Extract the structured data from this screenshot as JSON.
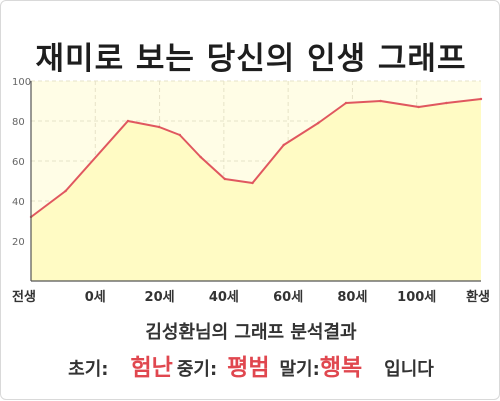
{
  "title": "재미로 보는 당신의 인생 그래프",
  "subtitle": "김성환님의 그래프 분석결과",
  "summary": {
    "early_label": "초기:",
    "early_value": "험난",
    "mid_label": "중기:",
    "mid_value": "평범",
    "late_label": "말기:",
    "late_value": "행복",
    "suffix": "입니다"
  },
  "colors": {
    "line": "#e0575f",
    "fill": "#fffbc4",
    "plot_background": "#fffde6",
    "grid": "#e6e2c8",
    "accent_text": "#e0474f"
  },
  "chart_data": {
    "type": "area",
    "title": "재미로 보는 당신의 인생 그래프",
    "xlabel": "",
    "ylabel": "",
    "x_ticks": [
      "전생",
      "0세",
      "20세",
      "40세",
      "60세",
      "80세",
      "100세",
      "환생"
    ],
    "y_ticks": [
      20,
      40,
      60,
      80,
      100
    ],
    "xlim": [
      -10,
      120
    ],
    "ylim": [
      0,
      100
    ],
    "grid": true,
    "legend": "none",
    "series": [
      {
        "x": [
          -10,
          0,
          18,
          27,
          33,
          39,
          46,
          54,
          63,
          73,
          81,
          91,
          102,
          110,
          120
        ],
        "y": [
          32,
          45,
          80,
          77,
          73,
          62,
          51,
          49,
          68,
          79,
          89,
          90,
          87,
          89,
          91
        ]
      }
    ]
  }
}
